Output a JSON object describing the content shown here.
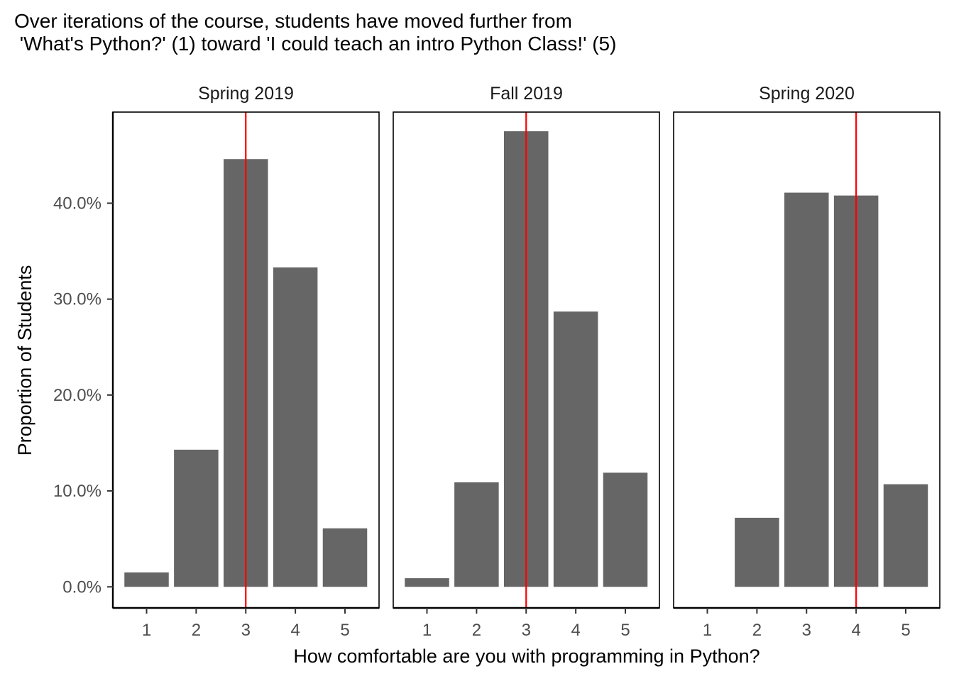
{
  "chart_data": {
    "type": "bar",
    "title": "Over iterations of the course, students have moved further from\n 'What's Python?' (1) toward 'I could teach an intro Python Class!' (5)",
    "xlabel": "How comfortable are you with programming in Python?",
    "ylabel": "Proportion of Students",
    "categories": [
      "1",
      "2",
      "3",
      "4",
      "5"
    ],
    "yticks": [
      0,
      10,
      20,
      30,
      40
    ],
    "ytick_labels": [
      "0.0%",
      "10.0%",
      "20.0%",
      "30.0%",
      "40.0%"
    ],
    "ylim": [
      -2.2,
      49.5
    ],
    "grid": false,
    "colors": {
      "bar": "#666666",
      "reference_line": "#ff0000",
      "axis": "#000000"
    },
    "panels": [
      {
        "name": "Spring 2019",
        "values": [
          1.5,
          14.3,
          44.6,
          33.3,
          6.1
        ],
        "reference_line_x": 3
      },
      {
        "name": "Fall 2019",
        "values": [
          0.9,
          10.9,
          47.5,
          28.7,
          11.9
        ],
        "reference_line_x": 3
      },
      {
        "name": "Spring 2020",
        "values": [
          0,
          7.2,
          41.1,
          40.8,
          10.7
        ],
        "reference_line_x": 4
      }
    ]
  }
}
